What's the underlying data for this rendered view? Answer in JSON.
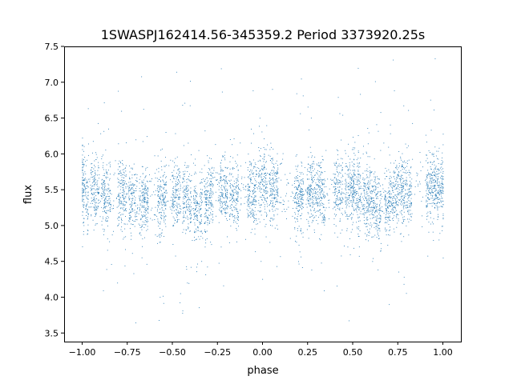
{
  "chart_data": {
    "type": "scatter",
    "title": "1SWASPJ162414.56-345359.2 Period 3373920.25s",
    "xlabel": "phase",
    "ylabel": "flux",
    "xlim": [
      -1.1,
      1.1
    ],
    "ylim": [
      3.38,
      7.5
    ],
    "xticks": [
      -1.0,
      -0.75,
      -0.5,
      -0.25,
      0.0,
      0.25,
      0.5,
      0.75,
      1.0
    ],
    "xtick_labels": [
      "−1.00",
      "−0.75",
      "−0.50",
      "−0.25",
      "0.00",
      "0.25",
      "0.50",
      "0.75",
      "1.00"
    ],
    "yticks": [
      3.5,
      4.0,
      4.5,
      5.0,
      5.5,
      6.0,
      6.5,
      7.0,
      7.5
    ],
    "ytick_labels": [
      "3.5",
      "4.0",
      "4.5",
      "5.0",
      "5.5",
      "6.0",
      "6.5",
      "7.0",
      "7.5"
    ],
    "grid": false,
    "legend": "none",
    "marker_color": "#1f77b4",
    "series": [
      {
        "x": [
          -1.0,
          -0.97,
          -0.94,
          -0.9,
          -0.82,
          -0.77,
          -0.72,
          -0.68,
          -0.63,
          -0.58,
          -0.53,
          -0.48,
          -0.44,
          -0.4,
          -0.36,
          -0.33,
          -0.3,
          -0.25,
          -0.2,
          -0.15,
          -0.1,
          -0.05,
          0.0,
          0.03,
          0.08,
          0.2,
          0.26,
          0.3,
          0.35,
          0.42,
          0.47,
          0.52,
          0.56,
          0.6,
          0.64,
          0.68,
          0.72,
          0.75,
          0.8,
          0.9,
          0.95,
          1.0
        ],
        "y": [
          5.6,
          5.4,
          5.5,
          5.45,
          5.4,
          5.5,
          5.35,
          5.3,
          5.4,
          5.35,
          5.4,
          5.45,
          5.4,
          5.3,
          5.2,
          5.3,
          5.4,
          5.5,
          5.45,
          5.4,
          5.5,
          5.45,
          5.6,
          5.55,
          5.5,
          5.4,
          5.5,
          5.45,
          5.4,
          5.5,
          5.45,
          5.5,
          5.4,
          5.35,
          5.2,
          5.35,
          5.4,
          5.55,
          5.45,
          5.5,
          5.6,
          5.5
        ]
      }
    ]
  }
}
